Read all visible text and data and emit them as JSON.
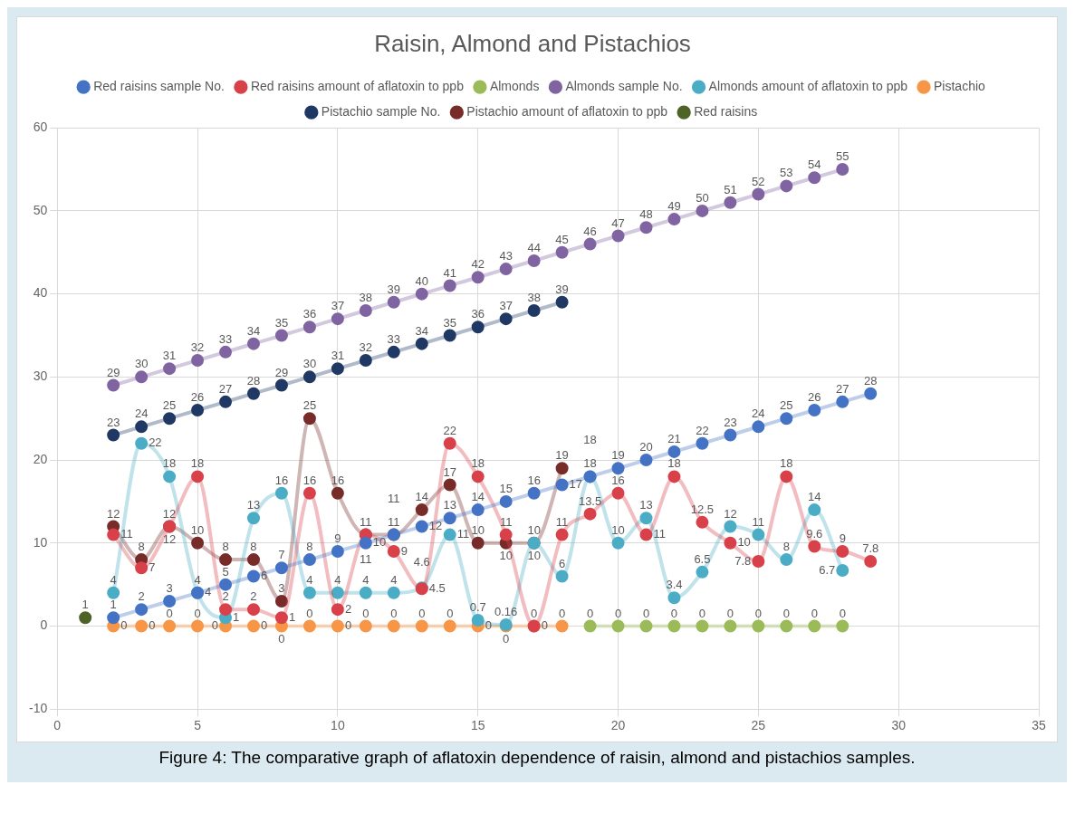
{
  "chart_data": {
    "type": "line",
    "title": "Raisin, Almond and Pistachios",
    "xlim": [
      0,
      35
    ],
    "xticks": [
      0,
      5,
      10,
      15,
      20,
      25,
      30,
      35
    ],
    "ylim": [
      -10,
      60
    ],
    "yticks": [
      -10,
      0,
      10,
      20,
      30,
      40,
      50,
      60
    ],
    "grid": true,
    "legend": "top",
    "marker": "circle",
    "data_labels": true,
    "annotations": [
      "Figure 4: The comparative graph of aflatoxin dependence of raisin, almond and pistachios samples."
    ],
    "series": [
      {
        "name": "Red raisins sample No.",
        "color": "#4472c4",
        "x": [
          2,
          3,
          4,
          5,
          6,
          7,
          8,
          9,
          10,
          11,
          12,
          13,
          14,
          15,
          16,
          17,
          18,
          19,
          20,
          21,
          22,
          23,
          24,
          25,
          26,
          27,
          28,
          29
        ],
        "values": [
          1,
          2,
          3,
          4,
          5,
          6,
          7,
          8,
          9,
          10,
          11,
          12,
          13,
          14,
          15,
          16,
          17,
          18,
          19,
          20,
          21,
          22,
          23,
          24,
          25,
          26,
          27,
          28
        ]
      },
      {
        "name": "Red raisins amount of aflatoxin to ppb",
        "color": "#d9414a",
        "x": [
          2,
          3,
          4,
          5,
          6,
          7,
          8,
          9,
          10,
          11,
          12,
          13,
          14,
          15,
          16,
          17,
          18,
          19,
          20,
          21,
          22,
          23,
          24,
          25,
          26,
          27,
          28,
          29
        ],
        "values": [
          11,
          7,
          12,
          18,
          2,
          2,
          1,
          16,
          2,
          11,
          9,
          4.5,
          22,
          18,
          11,
          0,
          11,
          13.5,
          16,
          11,
          18,
          12.5,
          10,
          7.8,
          18,
          9.6,
          9,
          7.8
        ]
      },
      {
        "name": "Almonds",
        "color": "#9bbb59",
        "x": [
          19,
          20,
          21,
          22,
          23,
          24,
          25,
          26,
          27,
          28
        ],
        "values": [
          0,
          0,
          0,
          0,
          0,
          0,
          0,
          0,
          0,
          0
        ]
      },
      {
        "name": "Almonds sample No.",
        "color": "#8064a2",
        "x": [
          2,
          3,
          4,
          5,
          6,
          7,
          8,
          9,
          10,
          11,
          12,
          13,
          14,
          15,
          16,
          17,
          18,
          19,
          20,
          21,
          22,
          23,
          24,
          25,
          26,
          27,
          28
        ],
        "values": [
          29,
          30,
          31,
          32,
          33,
          34,
          35,
          36,
          37,
          38,
          39,
          40,
          41,
          42,
          43,
          44,
          45,
          46,
          47,
          48,
          49,
          50,
          51,
          52,
          53,
          54,
          55
        ]
      },
      {
        "name": "Almonds amount of aflatoxin to ppb",
        "color": "#4bacc6",
        "x": [
          2,
          3,
          4,
          5,
          6,
          7,
          8,
          9,
          10,
          11,
          12,
          13,
          14,
          15,
          16,
          17,
          18,
          19,
          20,
          21,
          22,
          23,
          24,
          25,
          26,
          27,
          28
        ],
        "values": [
          4,
          22,
          18,
          4,
          1,
          13,
          16,
          4,
          4,
          4,
          4,
          4.6,
          11,
          0.7,
          0.16,
          10,
          6,
          18,
          10,
          13,
          3.4,
          6.5,
          12,
          11,
          8,
          14,
          6.7
        ]
      },
      {
        "name": "Pistachio",
        "color": "#f79646",
        "x": [
          2,
          3,
          4,
          5,
          6,
          7,
          8,
          9,
          10,
          11,
          12,
          13,
          14,
          15,
          16,
          17,
          18
        ],
        "values": [
          0,
          0,
          0,
          0,
          0,
          0,
          0,
          0,
          0,
          0,
          0,
          0,
          0,
          0,
          0,
          0,
          0
        ]
      },
      {
        "name": "Pistachio sample No.",
        "color": "#1f3864",
        "x": [
          2,
          3,
          4,
          5,
          6,
          7,
          8,
          9,
          10,
          11,
          12,
          13,
          14,
          15,
          16,
          17,
          18
        ],
        "values": [
          23,
          24,
          25,
          26,
          27,
          28,
          29,
          30,
          31,
          32,
          33,
          34,
          35,
          36,
          37,
          38,
          39
        ]
      },
      {
        "name": "Pistachio amount of aflatoxin to ppb",
        "color": "#772c2a",
        "x": [
          2,
          3,
          4,
          5,
          6,
          7,
          8,
          9,
          10,
          11,
          12,
          13,
          14,
          15,
          16,
          17,
          18
        ],
        "values": [
          12,
          8,
          12,
          10,
          8,
          8,
          3,
          25,
          16,
          11,
          11,
          14,
          17,
          10,
          10,
          10,
          19
        ]
      },
      {
        "name": "Red raisins",
        "color": "#4f6228",
        "x": [
          1
        ],
        "values": [
          1
        ]
      }
    ]
  }
}
